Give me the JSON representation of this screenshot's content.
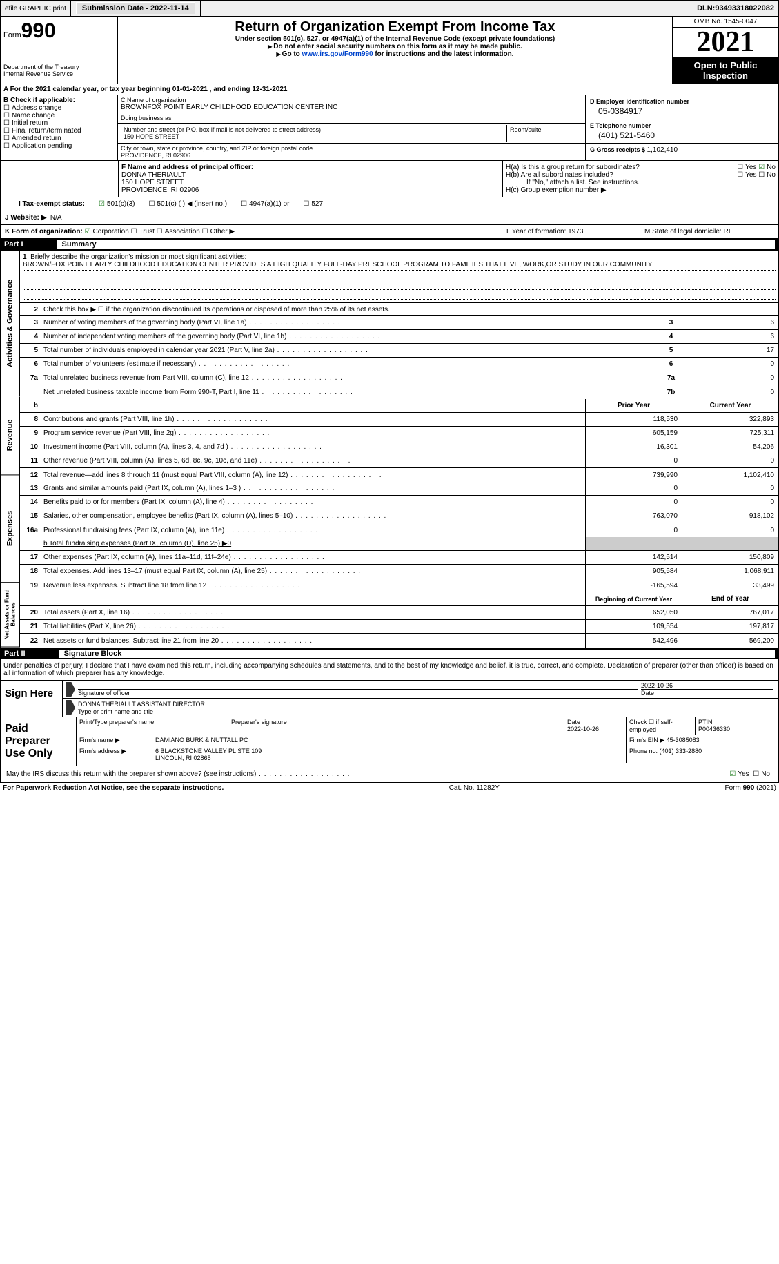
{
  "top": {
    "efile": "efile GRAPHIC print",
    "sub_label": "Submission Date - ",
    "sub_date": "2022-11-14",
    "dln_label": "DLN: ",
    "dln": "93493318022082"
  },
  "hdr": {
    "form_word": "Form",
    "form_no": "990",
    "dept": "Department of the Treasury\nInternal Revenue Service",
    "title": "Return of Organization Exempt From Income Tax",
    "sub": "Under section 501(c), 527, or 4947(a)(1) of the Internal Revenue Code (except private foundations)",
    "note1": "Do not enter social security numbers on this form as it may be made public.",
    "note2_pre": "Go to ",
    "note2_link": "www.irs.gov/Form990",
    "note2_post": " for instructions and the latest information.",
    "omb": "OMB No. 1545-0047",
    "year": "2021",
    "open": "Open to Public Inspection"
  },
  "rowA": "A  For the 2021 calendar year, or tax year beginning 01-01-2021    , and ending 12-31-2021",
  "b": {
    "hdr": "B Check if applicable:",
    "items": [
      "Address change",
      "Name change",
      "Initial return",
      "Final return/terminated",
      "Amended return",
      "Application pending"
    ]
  },
  "c": {
    "name_lbl": "C Name of organization",
    "name": "BROWNFOX POINT EARLY CHILDHOOD EDUCATION CENTER INC",
    "dba_lbl": "Doing business as",
    "street_lbl": "Number and street (or P.O. box if mail is not delivered to street address)",
    "street": "150 HOPE STREET",
    "room_lbl": "Room/suite",
    "city_lbl": "City or town, state or province, country, and ZIP or foreign postal code",
    "city": "PROVIDENCE, RI  02906"
  },
  "d": {
    "ein_lbl": "D Employer identification number",
    "ein": "05-0384917",
    "phone_lbl": "E Telephone number",
    "phone": "(401) 521-5460",
    "gross_lbl": "G Gross receipts $ ",
    "gross": "1,102,410"
  },
  "f": {
    "lbl": "F Name and address of principal officer:",
    "name": "DONNA THERIAULT",
    "addr1": "150 HOPE STREET",
    "addr2": "PROVIDENCE, RI  02906"
  },
  "h": {
    "a": "H(a)  Is this a group return for subordinates?",
    "b": "H(b)  Are all subordinates included?",
    "note": "If \"No,\" attach a list. See instructions.",
    "c": "H(c)  Group exemption number ▶",
    "yes": "Yes",
    "no": "No"
  },
  "tax": {
    "lbl": "I  Tax-exempt status:",
    "o1": "501(c)(3)",
    "o2": "501(c) (  ) ◀ (insert no.)",
    "o3": "4947(a)(1) or",
    "o4": "527"
  },
  "web": {
    "lbl": "J  Website: ▶",
    "val": "N/A"
  },
  "k": {
    "lbl": "K Form of organization:",
    "o1": "Corporation",
    "o2": "Trust",
    "o3": "Association",
    "o4": "Other ▶",
    "l": "L Year of formation: 1973",
    "m": "M State of legal domicile: RI"
  },
  "part1": {
    "lbl": "Part I",
    "ttl": "Summary"
  },
  "side": {
    "ag": "Activities & Governance",
    "rev": "Revenue",
    "exp": "Expenses",
    "na": "Net Assets or Fund Balances"
  },
  "p1": {
    "l1_lbl": "Briefly describe the organization's mission or most significant activities:",
    "l1_txt": "BROWN/FOX POINT EARLY CHILDHOOD EDUCATION CENTER PROVIDES A HIGH QUALITY FULL-DAY PRESCHOOL PROGRAM TO FAMILIES THAT LIVE, WORK,OR STUDY IN OUR COMMUNITY",
    "l2": "Check this box ▶ ☐  if the organization discontinued its operations or disposed of more than 25% of its net assets.",
    "rows_ag": [
      {
        "n": "3",
        "t": "Number of voting members of the governing body (Part VI, line 1a)",
        "b": "3",
        "v": "6"
      },
      {
        "n": "4",
        "t": "Number of independent voting members of the governing body (Part VI, line 1b)",
        "b": "4",
        "v": "6"
      },
      {
        "n": "5",
        "t": "Total number of individuals employed in calendar year 2021 (Part V, line 2a)",
        "b": "5",
        "v": "17"
      },
      {
        "n": "6",
        "t": "Total number of volunteers (estimate if necessary)",
        "b": "6",
        "v": "0"
      },
      {
        "n": "7a",
        "t": "Total unrelated business revenue from Part VIII, column (C), line 12",
        "b": "7a",
        "v": "0"
      },
      {
        "n": "",
        "t": "Net unrelated business taxable income from Form 990-T, Part I, line 11",
        "b": "7b",
        "v": "0"
      }
    ],
    "hdr_prior": "Prior Year",
    "hdr_curr": "Current Year",
    "rows_rev": [
      {
        "n": "8",
        "t": "Contributions and grants (Part VIII, line 1h)",
        "p": "118,530",
        "c": "322,893"
      },
      {
        "n": "9",
        "t": "Program service revenue (Part VIII, line 2g)",
        "p": "605,159",
        "c": "725,311"
      },
      {
        "n": "10",
        "t": "Investment income (Part VIII, column (A), lines 3, 4, and 7d )",
        "p": "16,301",
        "c": "54,206"
      },
      {
        "n": "11",
        "t": "Other revenue (Part VIII, column (A), lines 5, 6d, 8c, 9c, 10c, and 11e)",
        "p": "0",
        "c": "0"
      },
      {
        "n": "12",
        "t": "Total revenue—add lines 8 through 11 (must equal Part VIII, column (A), line 12)",
        "p": "739,990",
        "c": "1,102,410"
      }
    ],
    "rows_exp": [
      {
        "n": "13",
        "t": "Grants and similar amounts paid (Part IX, column (A), lines 1–3 )",
        "p": "0",
        "c": "0"
      },
      {
        "n": "14",
        "t": "Benefits paid to or for members (Part IX, column (A), line 4)",
        "p": "0",
        "c": "0"
      },
      {
        "n": "15",
        "t": "Salaries, other compensation, employee benefits (Part IX, column (A), lines 5–10)",
        "p": "763,070",
        "c": "918,102"
      },
      {
        "n": "16a",
        "t": "Professional fundraising fees (Part IX, column (A), line 11e)",
        "p": "0",
        "c": "0"
      }
    ],
    "l16b": "b  Total fundraising expenses (Part IX, column (D), line 25) ▶0",
    "rows_exp2": [
      {
        "n": "17",
        "t": "Other expenses (Part IX, column (A), lines 11a–11d, 11f–24e)",
        "p": "142,514",
        "c": "150,809"
      },
      {
        "n": "18",
        "t": "Total expenses. Add lines 13–17 (must equal Part IX, column (A), line 25)",
        "p": "905,584",
        "c": "1,068,911"
      },
      {
        "n": "19",
        "t": "Revenue less expenses. Subtract line 18 from line 12",
        "p": "-165,594",
        "c": "33,499"
      }
    ],
    "hdr_beg": "Beginning of Current Year",
    "hdr_end": "End of Year",
    "rows_na": [
      {
        "n": "20",
        "t": "Total assets (Part X, line 16)",
        "p": "652,050",
        "c": "767,017"
      },
      {
        "n": "21",
        "t": "Total liabilities (Part X, line 26)",
        "p": "109,554",
        "c": "197,817"
      },
      {
        "n": "22",
        "t": "Net assets or fund balances. Subtract line 21 from line 20",
        "p": "542,496",
        "c": "569,200"
      }
    ]
  },
  "part2": {
    "lbl": "Part II",
    "ttl": "Signature Block"
  },
  "penalty": "Under penalties of perjury, I declare that I have examined this return, including accompanying schedules and statements, and to the best of my knowledge and belief, it is true, correct, and complete. Declaration of preparer (other than officer) is based on all information of which preparer has any knowledge.",
  "sign": {
    "hdr": "Sign Here",
    "sig_lbl": "Signature of officer",
    "date": "2022-10-26",
    "date_lbl": "Date",
    "name": "DONNA THERIAULT  ASSISTANT DIRECTOR",
    "name_lbl": "Type or print name and title"
  },
  "paid": {
    "hdr": "Paid Preparer Use Only",
    "r1": {
      "c1": "Print/Type preparer's name",
      "c2": "Preparer's signature",
      "c3": "Date\n2022-10-26",
      "c4": "Check ☐ if self-employed",
      "c5": "PTIN\nP00436330"
    },
    "r2": {
      "c1": "Firm's name    ▶",
      "c2": "DAMIANO BURK & NUTTALL PC",
      "c3": "Firm's EIN ▶ 45-3085083"
    },
    "r3": {
      "c1": "Firm's address ▶",
      "c2": "6 BLACKSTONE VALLEY PL STE 109\nLINCOLN, RI  02865",
      "c3": "Phone no. (401) 333-2880"
    }
  },
  "discuss": {
    "t": "May the IRS discuss this return with the preparer shown above? (see instructions)",
    "yes": "Yes",
    "no": "No"
  },
  "footer": {
    "l": "For Paperwork Reduction Act Notice, see the separate instructions.",
    "m": "Cat. No. 11282Y",
    "r": "Form 990 (2021)"
  }
}
